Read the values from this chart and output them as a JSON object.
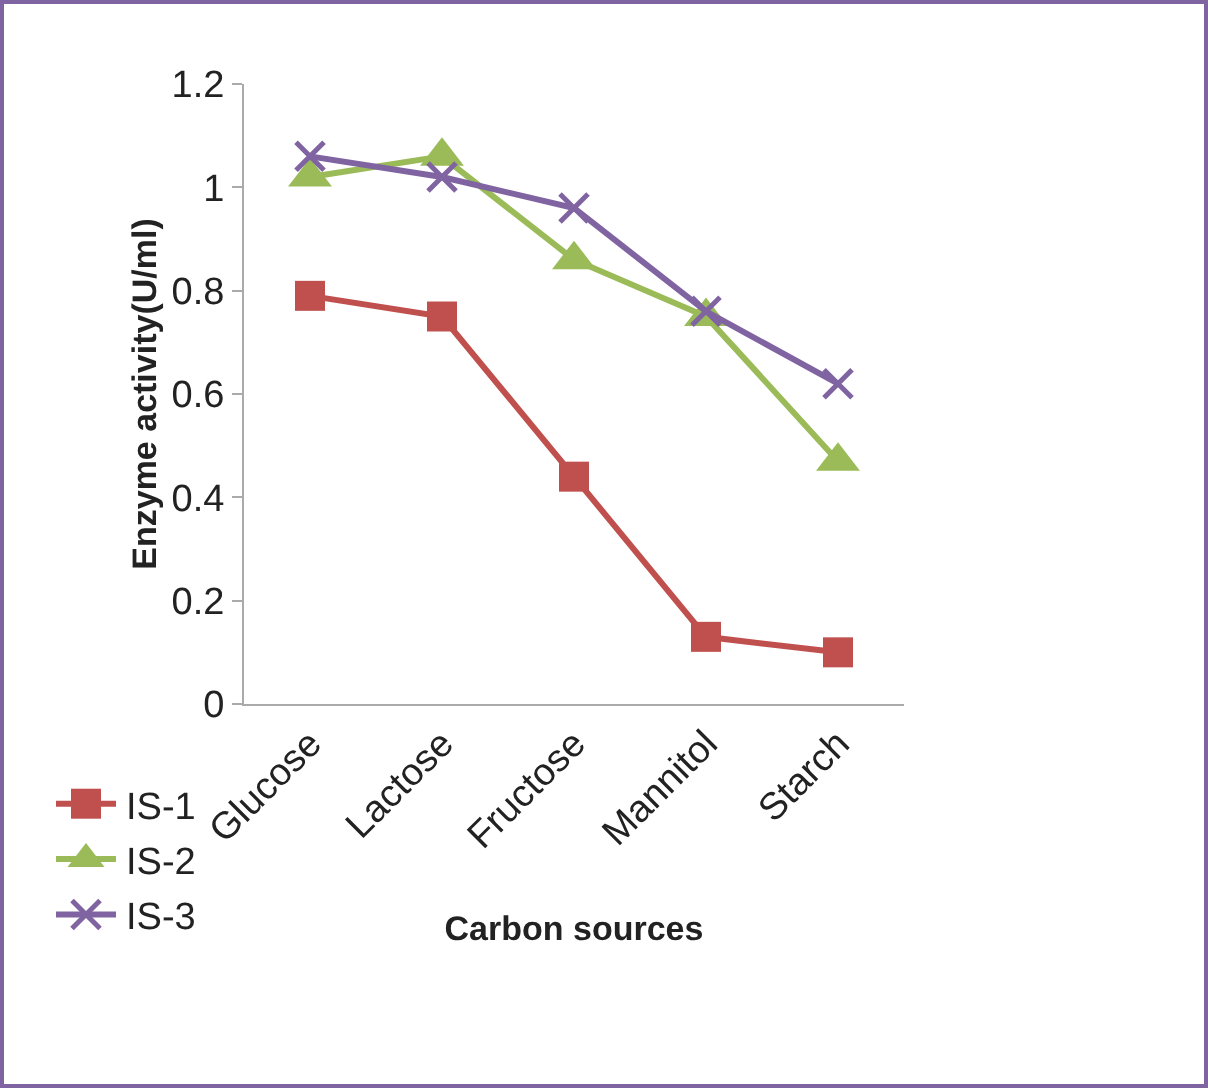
{
  "chart_data": {
    "type": "line",
    "xlabel": "Carbon sources",
    "ylabel": "Enzyme activity(U/ml)",
    "categories": [
      "Glucose",
      "Lactose",
      "Fructose",
      "Mannitol",
      "Starch"
    ],
    "series": [
      {
        "name": "IS-1",
        "color": "#c0504d",
        "marker": "square",
        "values": [
          0.79,
          0.75,
          0.44,
          0.13,
          0.1
        ]
      },
      {
        "name": "IS-2",
        "color": "#9bbb59",
        "marker": "triangle",
        "values": [
          1.02,
          1.06,
          0.86,
          0.75,
          0.47
        ]
      },
      {
        "name": "IS-3",
        "color": "#8064a2",
        "marker": "cross",
        "values": [
          1.06,
          1.02,
          0.96,
          0.76,
          0.62
        ]
      }
    ],
    "ylim": [
      0,
      1.2
    ],
    "yticks": [
      0,
      0.2,
      0.4,
      0.6,
      0.8,
      1,
      1.2
    ],
    "grid": false,
    "legend": "bottom left"
  }
}
